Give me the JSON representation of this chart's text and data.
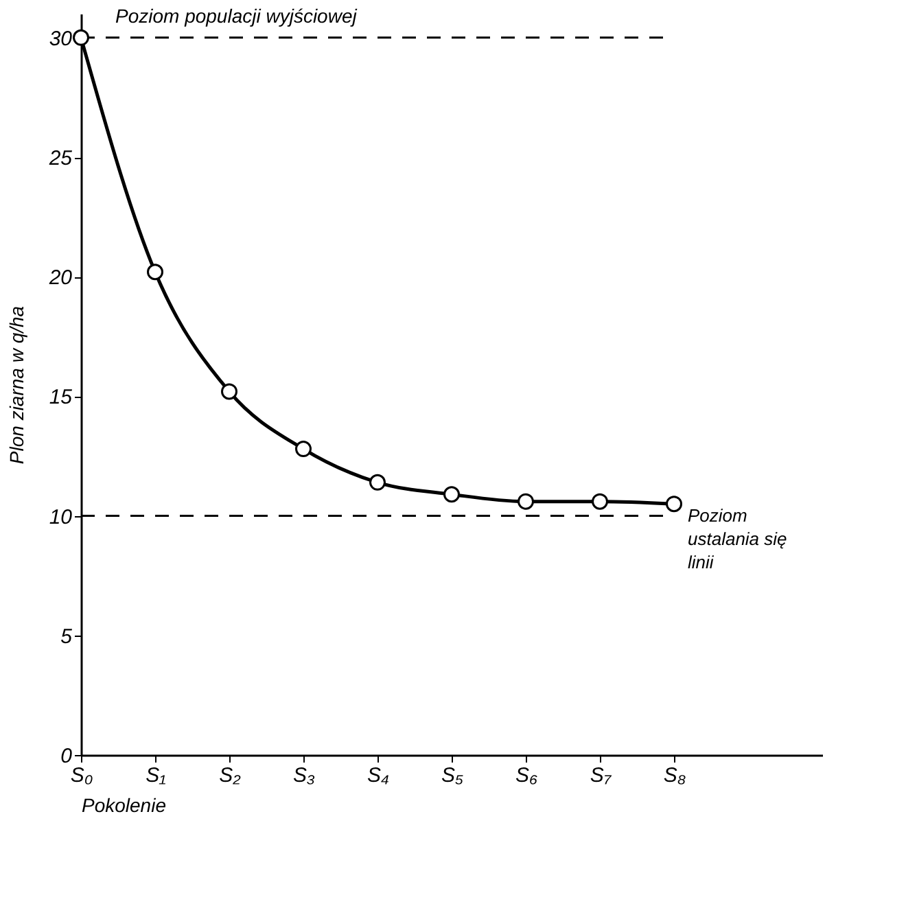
{
  "chart_data": {
    "type": "line",
    "xlabel": "Pokolenie",
    "ylabel": "Plon ziarna w q/ha",
    "categories": [
      "S₀",
      "S₁",
      "S₂",
      "S₃",
      "S₄",
      "S₅",
      "S₆",
      "S₇",
      "S₈"
    ],
    "series": [
      {
        "color": "#000000",
        "values": [
          30,
          20.2,
          15.2,
          12.8,
          11.4,
          10.9,
          10.6,
          10.6,
          10.5
        ]
      }
    ],
    "ylim": [
      0,
      31
    ],
    "yticks": [
      0,
      5,
      10,
      15,
      20,
      25,
      30
    ],
    "grid": false,
    "marker": "circle",
    "line_style": "solid",
    "ref_lines": [
      {
        "axis": "y",
        "value": 30,
        "label": "Poziom populacji wyjściowej",
        "line_style": "dashed",
        "color": "#000000"
      },
      {
        "axis": "y",
        "value": 10,
        "label": "Poziom ustalania się linii",
        "line_style": "dashed",
        "color": "#000000"
      }
    ]
  }
}
